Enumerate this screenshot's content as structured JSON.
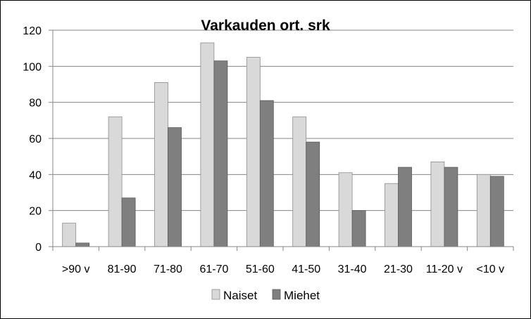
{
  "chart_data": {
    "type": "bar",
    "title": "Varkauden ort. srk",
    "xlabel": "",
    "ylabel": "",
    "categories": [
      ">90 v",
      "81-90",
      "71-80",
      "61-70",
      "51-60",
      "41-50",
      "31-40",
      "21-30",
      "11-20 v",
      "<10 v"
    ],
    "series": [
      {
        "name": "Naiset",
        "color": "#d9d9d9",
        "values": [
          13,
          72,
          91,
          113,
          105,
          72,
          41,
          35,
          47,
          40
        ]
      },
      {
        "name": "Miehet",
        "color": "#7f7f7f",
        "values": [
          2,
          27,
          66,
          103,
          81,
          58,
          20,
          44,
          44,
          39
        ]
      }
    ],
    "ylim": [
      0,
      120
    ],
    "yticks": [
      0,
      20,
      40,
      60,
      80,
      100,
      120
    ],
    "grid": true,
    "legend_position": "bottom"
  }
}
